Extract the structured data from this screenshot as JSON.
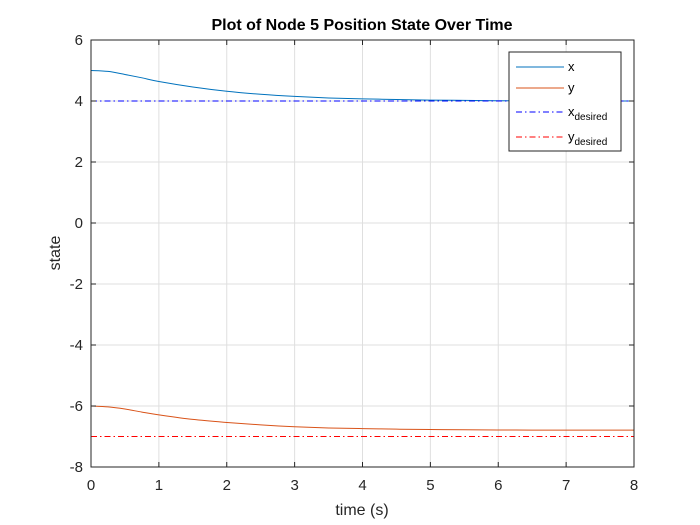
{
  "chart_data": {
    "type": "line",
    "title": "Plot of Node 5 Position State Over Time",
    "xlabel": "time (s)",
    "ylabel": "state",
    "xlim": [
      0,
      8
    ],
    "ylim": [
      -8,
      6
    ],
    "xticks": [
      "0",
      "1",
      "2",
      "3",
      "4",
      "5",
      "6",
      "7",
      "8"
    ],
    "yticks": [
      "6",
      "4",
      "2",
      "0",
      "-2",
      "-4",
      "-6",
      "-8"
    ],
    "grid": true,
    "legend_position": "top-right",
    "series": [
      {
        "name": "x",
        "style": "solid",
        "color": "#0072BD",
        "x": [
          0,
          0.25,
          0.5,
          0.75,
          1,
          1.5,
          2,
          2.5,
          3,
          3.5,
          4,
          4.5,
          5,
          5.5,
          6,
          6.5,
          7,
          7.5,
          8
        ],
        "y": [
          5.0,
          4.97,
          4.87,
          4.76,
          4.64,
          4.46,
          4.32,
          4.22,
          4.15,
          4.1,
          4.07,
          4.05,
          4.03,
          4.02,
          4.01,
          4.01,
          4.0,
          4.0,
          4.0
        ]
      },
      {
        "name": "y",
        "style": "solid",
        "color": "#D95319",
        "x": [
          0,
          0.25,
          0.5,
          0.75,
          1,
          1.5,
          2,
          2.5,
          3,
          3.5,
          4,
          4.5,
          5,
          5.5,
          6,
          6.5,
          7,
          7.5,
          8
        ],
        "y": [
          -6.0,
          -6.03,
          -6.1,
          -6.2,
          -6.29,
          -6.44,
          -6.54,
          -6.62,
          -6.68,
          -6.72,
          -6.74,
          -6.76,
          -6.77,
          -6.78,
          -6.785,
          -6.79,
          -6.79,
          -6.79,
          -6.79
        ]
      },
      {
        "name": "x",
        "name_subscript": "desired",
        "style": "dashdot",
        "color": "#0000FF",
        "x": [
          0,
          8
        ],
        "y": [
          4,
          4
        ]
      },
      {
        "name": "y",
        "name_subscript": "desired",
        "style": "dashdot",
        "color": "#FF0000",
        "x": [
          0,
          8
        ],
        "y": [
          -7,
          -7
        ]
      }
    ]
  }
}
